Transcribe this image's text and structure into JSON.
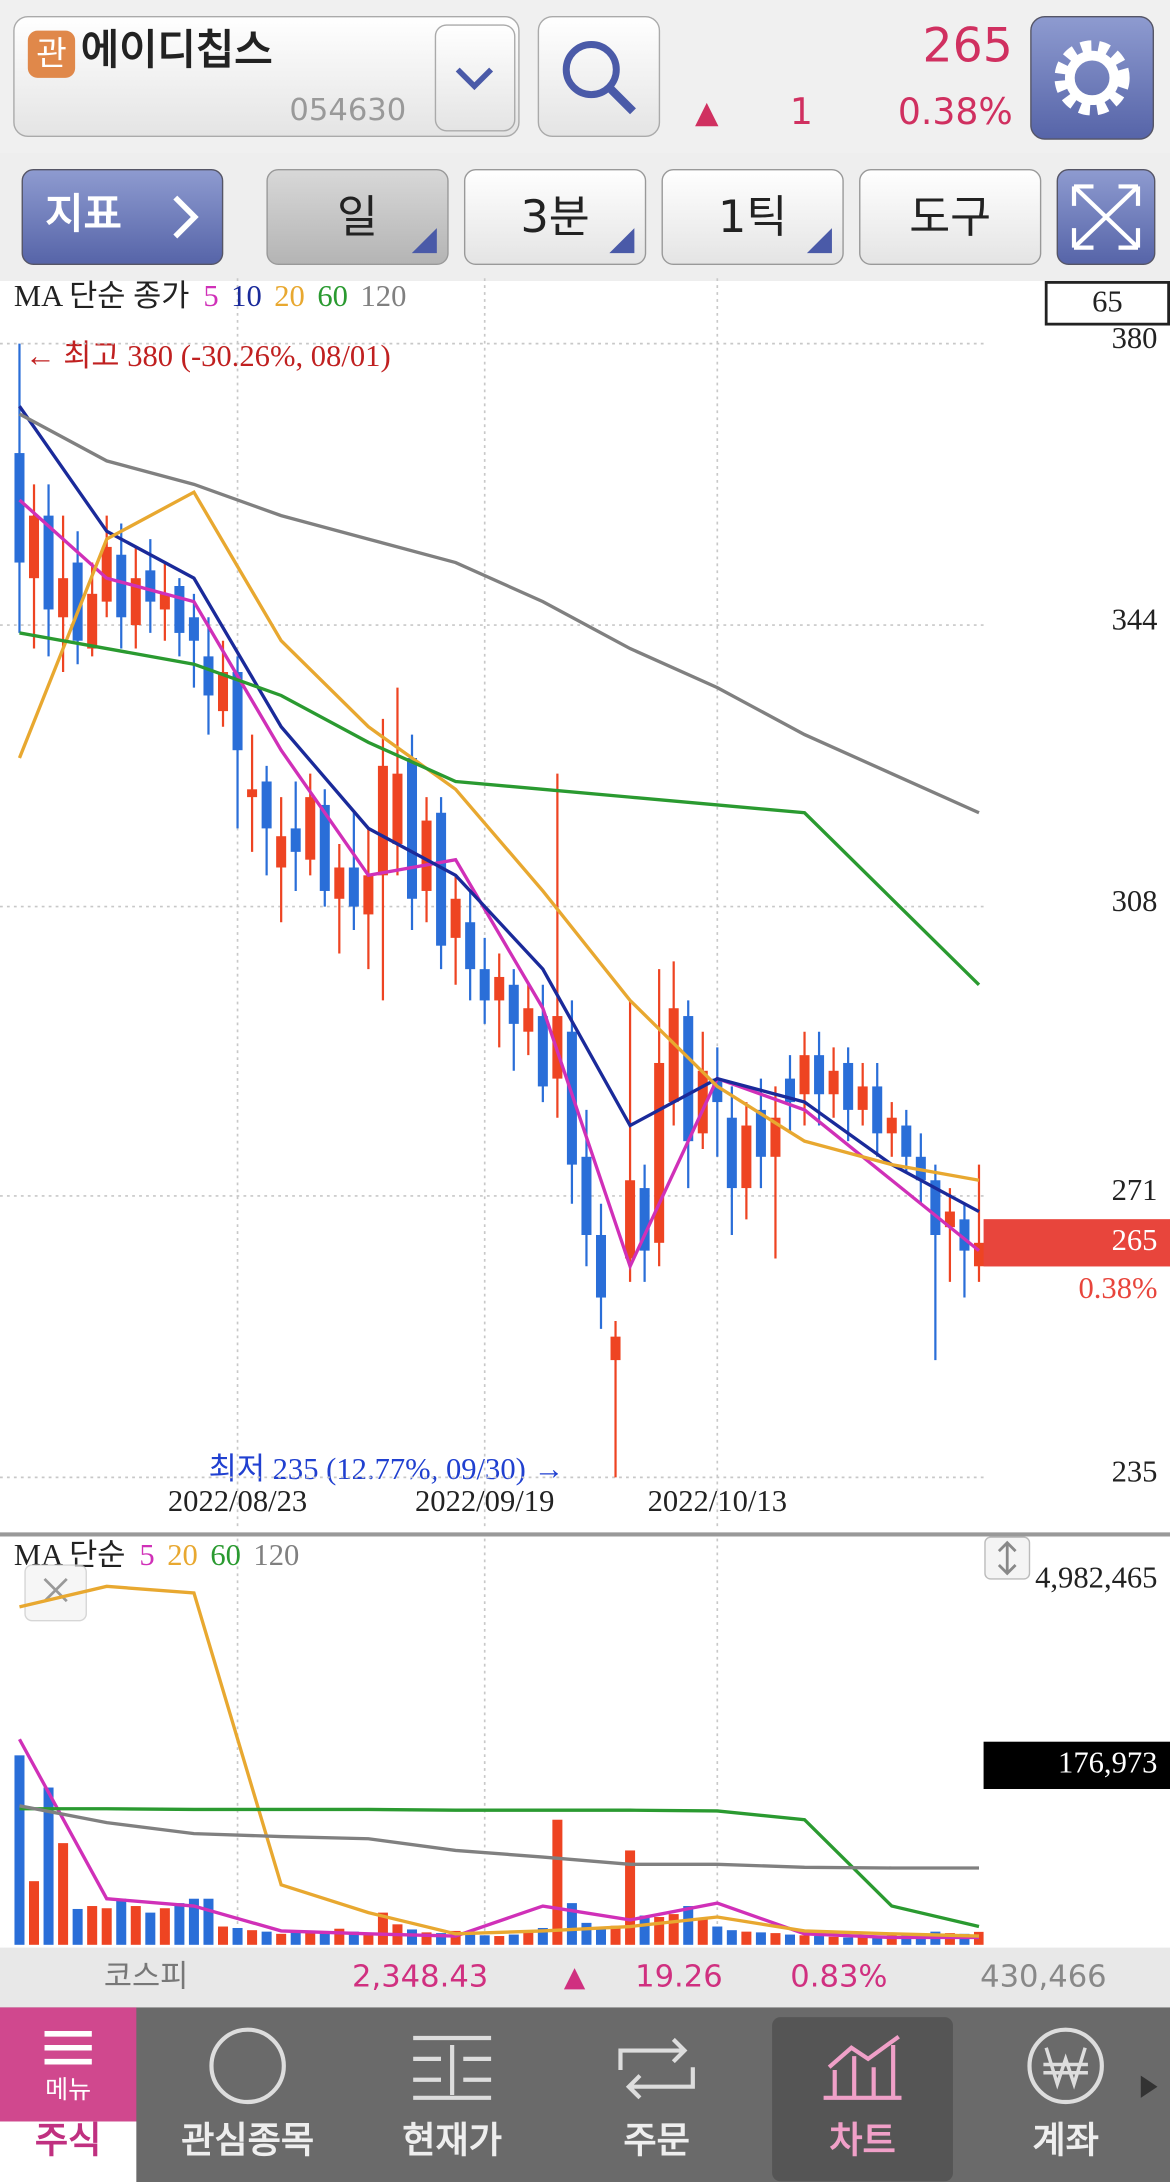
{
  "header": {
    "badge": "관",
    "name": "에이디칩스",
    "code": "054630",
    "price": 265,
    "change_symbol": "▲",
    "change": 1,
    "change_pct": "0.38%"
  },
  "toolbar": {
    "indicator": "지표",
    "buttons": [
      "일",
      "3분",
      "1틱",
      "도구"
    ]
  },
  "chart_data": [
    {
      "type": "candlestick",
      "legend_title": "MA 단순 종가",
      "crosshair_value": 65,
      "up_color": "#ee4422",
      "down_color": "#2a6ed8",
      "categories": [
        null,
        null,
        null,
        null,
        null,
        null,
        null,
        null,
        null,
        null,
        null,
        null,
        null,
        null,
        null,
        "2022/08/23",
        null,
        null,
        null,
        null,
        null,
        null,
        null,
        null,
        null,
        null,
        null,
        null,
        null,
        null,
        null,
        null,
        "2022/09/19",
        null,
        null,
        null,
        null,
        null,
        null,
        null,
        null,
        null,
        null,
        null,
        null,
        null,
        null,
        null,
        "2022/10/13",
        null,
        null,
        null,
        null,
        null,
        null,
        null,
        null,
        null,
        null,
        null,
        null,
        null,
        null,
        null,
        null,
        null,
        null
      ],
      "open": [
        366,
        350,
        358,
        345,
        352,
        341,
        347,
        353,
        344,
        351,
        346,
        349,
        345,
        340,
        333,
        338,
        322,
        324,
        313,
        318,
        314,
        321,
        309,
        313,
        307,
        312,
        316,
        327,
        310,
        320,
        304,
        306,
        300,
        296,
        298,
        292,
        294,
        286,
        292,
        276,
        266,
        250,
        263,
        272,
        265,
        283,
        294,
        279,
        286,
        281,
        272,
        282,
        276,
        286,
        284,
        289,
        284,
        288,
        282,
        285,
        279,
        280,
        276,
        273,
        267,
        268,
        262
      ],
      "high": [
        380,
        362,
        362,
        358,
        356,
        352,
        358,
        357,
        354,
        355,
        352,
        350,
        348,
        345,
        342,
        340,
        330,
        326,
        322,
        324,
        325,
        323,
        316,
        320,
        318,
        332,
        336,
        330,
        322,
        322,
        312,
        310,
        304,
        302,
        300,
        298,
        298,
        325,
        296,
        282,
        270,
        255,
        296,
        275,
        300,
        301,
        296,
        292,
        290,
        285,
        283,
        286,
        285,
        289,
        292,
        292,
        290,
        290,
        288,
        288,
        283,
        282,
        279,
        275,
        272,
        270,
        275
      ],
      "low": [
        343,
        341,
        340,
        338,
        339,
        340,
        345,
        341,
        341,
        343,
        342,
        340,
        336,
        330,
        331,
        318,
        315,
        312,
        306,
        310,
        312,
        308,
        302,
        305,
        300,
        296,
        312,
        305,
        306,
        300,
        298,
        296,
        293,
        290,
        287,
        289,
        283,
        281,
        270,
        262,
        254,
        235,
        260,
        260,
        262,
        280,
        272,
        277,
        276,
        266,
        268,
        272,
        263,
        279,
        280,
        280,
        281,
        278,
        280,
        276,
        276,
        274,
        270,
        250,
        260,
        258,
        260
      ],
      "close": [
        352,
        358,
        346,
        350,
        342,
        348,
        354,
        345,
        350,
        347,
        348,
        343,
        342,
        335,
        338,
        328,
        323,
        318,
        317,
        315,
        322,
        310,
        313,
        308,
        312,
        326,
        325,
        309,
        319,
        303,
        309,
        300,
        296,
        299,
        293,
        295,
        285,
        294,
        275,
        266,
        258,
        253,
        273,
        264,
        288,
        295,
        278,
        287,
        283,
        272,
        280,
        276,
        281,
        283,
        289,
        284,
        287,
        282,
        285,
        279,
        281,
        276,
        273,
        266,
        269,
        264,
        265
      ],
      "bar_index": [
        0,
        6,
        12,
        18,
        24,
        30,
        36,
        42,
        48,
        54,
        60,
        66
      ],
      "ma": [
        {
          "name": "5",
          "color": "#d030b8",
          "values": [
            360,
            350,
            347,
            328,
            312,
            314,
            295,
            262,
            286,
            282,
            273,
            264
          ]
        },
        {
          "name": "10",
          "color": "#1a2a9a",
          "values": [
            372,
            356,
            350,
            331,
            318,
            312,
            300,
            280,
            286,
            283,
            275,
            269
          ]
        },
        {
          "name": "20",
          "color": "#e8a830",
          "values": [
            327,
            355,
            361,
            342,
            331,
            323,
            310,
            296,
            285,
            278,
            275,
            273
          ]
        },
        {
          "name": "60",
          "color": "#2a9a30",
          "values": [
            343,
            341,
            339,
            335,
            329,
            324,
            323,
            322,
            321,
            320,
            309,
            298
          ]
        },
        {
          "name": "120",
          "color": "#808080",
          "values": [
            371,
            365,
            362,
            358,
            355,
            352,
            347,
            341,
            336,
            330,
            325,
            320
          ]
        }
      ],
      "ylim": [
        235,
        380
      ],
      "yticks": [
        235,
        271,
        308,
        344,
        380
      ],
      "grid": true,
      "last_price": 265,
      "last_change_pct": "0.38%",
      "annotations": [
        "← 최고 380 (-30.26%, 08/01)",
        "최저 235 (12.77%, 09/30) →"
      ]
    },
    {
      "type": "bar",
      "legend_title": "MA 단순",
      "values": [
        2590000,
        870000,
        2150000,
        1390000,
        490000,
        530000,
        500000,
        630000,
        530000,
        440000,
        500000,
        570000,
        630000,
        630000,
        250000,
        230000,
        200000,
        180000,
        150000,
        170000,
        190000,
        160000,
        220000,
        180000,
        150000,
        440000,
        280000,
        210000,
        170000,
        160000,
        190000,
        150000,
        130000,
        120000,
        140000,
        170000,
        230000,
        1710000,
        570000,
        300000,
        240000,
        260000,
        1290000,
        400000,
        380000,
        420000,
        530000,
        350000,
        250000,
        200000,
        180000,
        170000,
        160000,
        140000,
        130000,
        120000,
        110000,
        100000,
        110000,
        120000,
        130000,
        140000,
        150000,
        180000,
        160000,
        150000,
        176973
      ],
      "bar_index": [
        0,
        6,
        12,
        18,
        24,
        30,
        36,
        42,
        48,
        54,
        60,
        66
      ],
      "ma": [
        {
          "name": "5",
          "color": "#d030b8",
          "values": [
            2810000,
            630000,
            530000,
            190000,
            150000,
            120000,
            530000,
            340000,
            570000,
            150000,
            100000,
            100000
          ]
        },
        {
          "name": "20",
          "color": "#e8a830",
          "values": [
            4620000,
            4900000,
            4810000,
            820000,
            440000,
            150000,
            190000,
            250000,
            380000,
            190000,
            150000,
            120000
          ]
        },
        {
          "name": "60",
          "color": "#2a9a30",
          "values": [
            1860000,
            1860000,
            1850000,
            1850000,
            1850000,
            1840000,
            1840000,
            1840000,
            1830000,
            1710000,
            530000,
            250000
          ]
        },
        {
          "name": "120",
          "color": "#808080",
          "values": [
            1900000,
            1670000,
            1520000,
            1480000,
            1450000,
            1290000,
            1200000,
            1100000,
            1100000,
            1060000,
            1050000,
            1050000
          ]
        }
      ],
      "ylim": [
        0,
        4982465
      ],
      "yticks": [
        {
          "value": 4982465,
          "label": "4,982,465"
        }
      ],
      "last_value": {
        "value": 176973,
        "label": "176,973"
      }
    }
  ],
  "index_bar": {
    "name": "코스피",
    "value": "2,348.43",
    "change_symbol": "▲",
    "change": "19.26",
    "change_pct": "0.83%",
    "volume": "430,466"
  },
  "nav": {
    "menu": "메뉴",
    "tabs": [
      "주식",
      "관심종목",
      "현재가",
      "주문",
      "차트",
      "계좌"
    ]
  }
}
